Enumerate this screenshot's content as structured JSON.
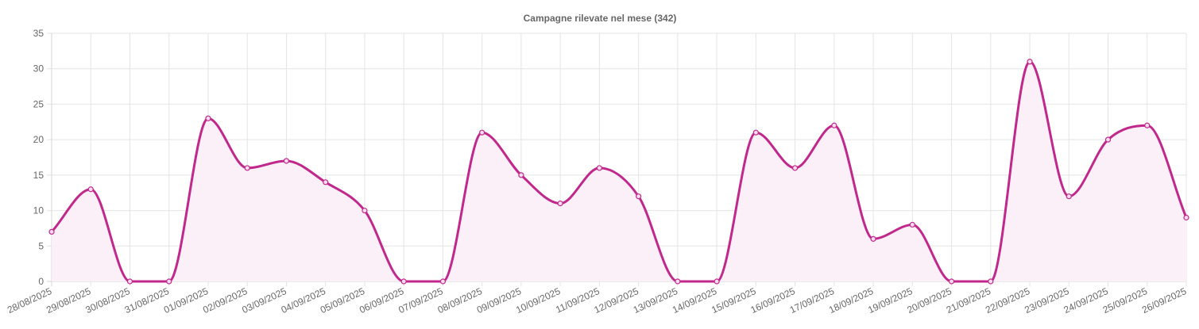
{
  "chart_data": {
    "type": "area",
    "title": "Campagne rilevate nel mese (342)",
    "xlabel": "",
    "ylabel": "",
    "ylim": [
      0,
      35
    ],
    "yticks": [
      "0",
      "5",
      "10",
      "15",
      "20",
      "25",
      "30",
      "35"
    ],
    "grid": true,
    "legend": "none",
    "categories": [
      "28/08/2025",
      "29/08/2025",
      "30/08/2025",
      "31/08/2025",
      "01/09/2025",
      "02/09/2025",
      "03/09/2025",
      "04/09/2025",
      "05/09/2025",
      "06/09/2025",
      "07/09/2025",
      "08/09/2025",
      "09/09/2025",
      "10/09/2025",
      "11/09/2025",
      "12/09/2025",
      "13/09/2025",
      "14/09/2025",
      "15/09/2025",
      "16/09/2025",
      "17/09/2025",
      "18/09/2025",
      "19/09/2025",
      "20/09/2025",
      "21/09/2025",
      "22/09/2025",
      "23/09/2025",
      "24/09/2025",
      "25/09/2025",
      "26/09/2025"
    ],
    "series": [
      {
        "values": [
          7,
          13,
          0,
          0,
          23,
          16,
          17,
          14,
          10,
          0,
          0,
          21,
          15,
          11,
          16,
          12,
          0,
          0,
          21,
          16,
          22,
          6,
          8,
          0,
          0,
          31,
          12,
          20,
          22,
          9
        ],
        "color": "#c0288c",
        "fill": "#fbf0f8"
      }
    ]
  }
}
